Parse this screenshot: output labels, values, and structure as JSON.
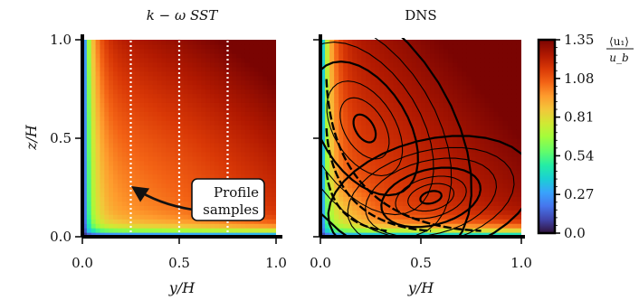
{
  "chart_data": [
    {
      "type": "heatmap",
      "panel": "left",
      "title": "k − ω SST",
      "xlabel": "y/H",
      "ylabel": "z/H",
      "xlim": [
        0.0,
        1.0
      ],
      "ylim": [
        0.0,
        1.0
      ],
      "x_ticks": [
        "0.0",
        "0.5",
        "1.0"
      ],
      "y_ticks": [
        "0.0",
        "0.5",
        "1.0"
      ],
      "field": "mean streamwise velocity <u1>/ub, low near walls y=0 and z=0, rising to ~1.3 toward the corner y=1, z=1",
      "profile_sample_lines_y": [
        0.25,
        0.5,
        0.75
      ],
      "annotation": {
        "lines": [
          "Profile",
          "samples"
        ],
        "points_to": {
          "y": 0.25,
          "z": 0.24
        }
      }
    },
    {
      "type": "heatmap",
      "panel": "right",
      "title": "DNS",
      "xlabel": "y/H",
      "xlim": [
        0.0,
        1.0
      ],
      "ylim": [
        0.0,
        1.0
      ],
      "x_ticks": [
        "0.0",
        "0.5",
        "1.0"
      ],
      "field": "mean streamwise velocity <u1>/ub with secondary-flow streamlines; two counter-rotating vortices centred near (0.22, 0.55) and (0.55, 0.2)",
      "vortex_centers": [
        {
          "y": 0.22,
          "z": 0.55
        },
        {
          "y": 0.55,
          "z": 0.2
        }
      ]
    }
  ],
  "colorbar": {
    "ticks": [
      "0.0",
      "0.27",
      "0.54",
      "0.81",
      "1.08",
      "1.35"
    ],
    "tick_values": [
      0.0,
      0.27,
      0.54,
      0.81,
      1.08,
      1.35
    ],
    "range": [
      0.0,
      1.35
    ],
    "label_numerator": "⟨u₁⟩",
    "label_denominator": "u_b",
    "colormap": "turbo"
  }
}
